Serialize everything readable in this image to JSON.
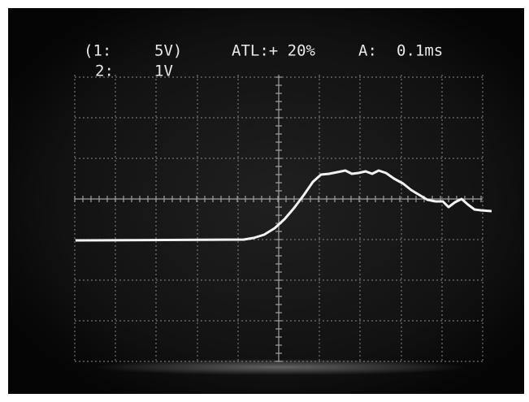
{
  "screen": {
    "channel1": {
      "label": "(1:",
      "scale": "5V)"
    },
    "channel2": {
      "label": "2:",
      "scale": "1V"
    },
    "trigger": "ATL:+ 20%",
    "timebase": {
      "label": "A:",
      "value": "0.1ms"
    }
  }
}
